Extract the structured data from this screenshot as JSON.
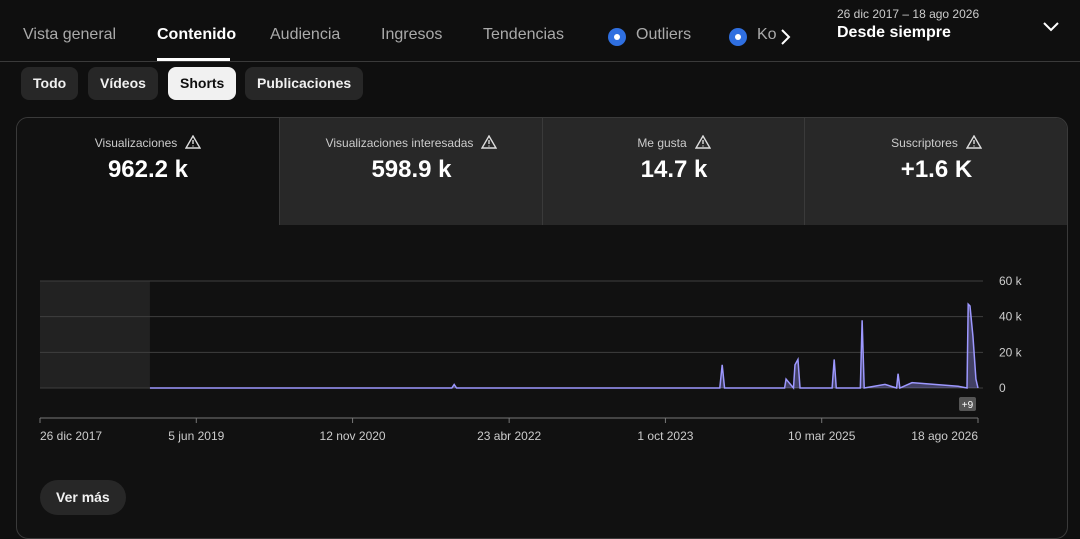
{
  "tabs": [
    "Vista general",
    "Contenido",
    "Audiencia",
    "Ingresos",
    "Tendencias",
    "Outliers",
    "Ko"
  ],
  "date_range": {
    "range": "26 dic 2017 – 18 ago 2026",
    "label": "Desde siempre"
  },
  "filters": [
    "Todo",
    "Vídeos",
    "Shorts",
    "Publicaciones"
  ],
  "metrics": [
    {
      "label": "Visualizaciones",
      "value": "962.2 k"
    },
    {
      "label": "Visualizaciones interesadas",
      "value": "598.9 k"
    },
    {
      "label": "Me gusta",
      "value": "14.7 k"
    },
    {
      "label": "Suscriptores",
      "value": "+1.6 K"
    }
  ],
  "chart_data": {
    "type": "line",
    "color": "#9d98ff",
    "grid": true,
    "x": [
      "2018-12-31",
      "2021-10-12",
      "2021-10-20",
      "2021-10-28",
      "2024-04-01",
      "2024-04-09",
      "2024-04-17",
      "2024-11-05",
      "2024-11-10",
      "2024-12-05",
      "2024-12-10",
      "2024-12-20",
      "2024-12-27",
      "2025-04-14",
      "2025-04-21",
      "2025-04-28",
      "2025-07-18",
      "2025-07-24",
      "2025-07-31",
      "2025-10-09",
      "2025-11-17",
      "2025-11-22",
      "2025-11-28",
      "2026-01-08",
      "2026-06-12",
      "2026-07-12",
      "2026-07-16",
      "2026-07-22",
      "2026-08-01",
      "2026-08-11",
      "2026-08-18"
    ],
    "series": [
      {
        "name": "Visualizaciones",
        "values": [
          0,
          0,
          2000,
          0,
          0,
          13000,
          0,
          0,
          5000,
          0,
          13000,
          16000,
          0,
          0,
          16000,
          0,
          0,
          38000,
          0,
          2000,
          0,
          8000,
          0,
          3000,
          1000,
          0,
          47000,
          46000,
          29000,
          5000,
          0
        ]
      }
    ],
    "xlim": [
      "2017-12-26",
      "2026-08-18"
    ],
    "xticks": [
      {
        "value": "2017-12-26",
        "label": "26 dic 2017"
      },
      {
        "value": "2019-06-05",
        "label": "5 jun 2019"
      },
      {
        "value": "2020-11-12",
        "label": "12 nov 2020"
      },
      {
        "value": "2022-04-23",
        "label": "23 abr 2022"
      },
      {
        "value": "2023-10-01",
        "label": "1 oct 2023"
      },
      {
        "value": "2025-03-10",
        "label": "10 mar 2025"
      },
      {
        "value": "2026-08-18",
        "label": "18 ago 2026"
      }
    ],
    "ylim": [
      0,
      60000
    ],
    "yticks": [
      0,
      {
        "value": 20000,
        "label": "20 k"
      },
      {
        "value": 40000,
        "label": "40 k"
      },
      {
        "value": 60000,
        "label": "60 k"
      }
    ],
    "end_badge": "+9"
  },
  "more_button": "Ver más"
}
